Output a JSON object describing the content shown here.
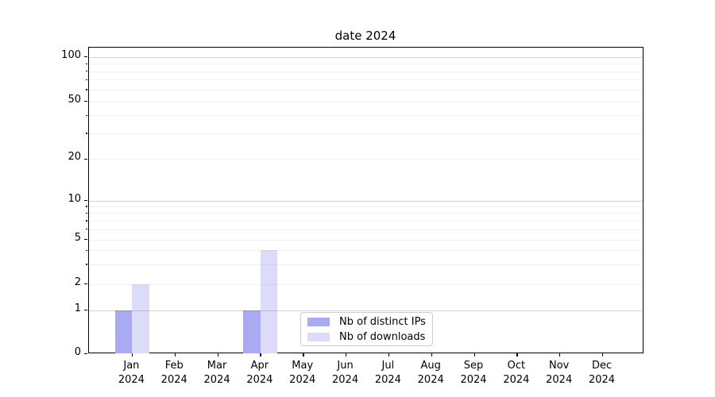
{
  "title": "date 2024",
  "chart_data": {
    "type": "bar",
    "title": "date 2024",
    "categories": [
      "Jan",
      "Feb",
      "Mar",
      "Apr",
      "May",
      "Jun",
      "Jul",
      "Aug",
      "Sep",
      "Oct",
      "Nov",
      "Dec"
    ],
    "category_year": "2024",
    "series": [
      {
        "name": "Nb of distinct IPs",
        "color": "#aaaaf2",
        "values": [
          1,
          0,
          0,
          1,
          0,
          0,
          0,
          0,
          0,
          0,
          0,
          0
        ]
      },
      {
        "name": "Nb of downloads",
        "color": "#dcdcf8",
        "values": [
          2,
          0,
          0,
          4,
          0,
          0,
          0,
          0,
          0,
          0,
          0,
          0
        ]
      }
    ],
    "yscale": "symlog",
    "yticks": [
      0,
      1,
      2,
      5,
      10,
      20,
      50,
      100
    ],
    "minor_gridlines": [
      2,
      3,
      4,
      5,
      6,
      7,
      8,
      9,
      20,
      30,
      40,
      50,
      60,
      70,
      80,
      90
    ],
    "major_gridlines": [
      1,
      10,
      100
    ],
    "ylim": [
      0,
      120
    ],
    "xlabel": "",
    "ylabel": "",
    "grid": true,
    "legend_position": "lower center"
  }
}
